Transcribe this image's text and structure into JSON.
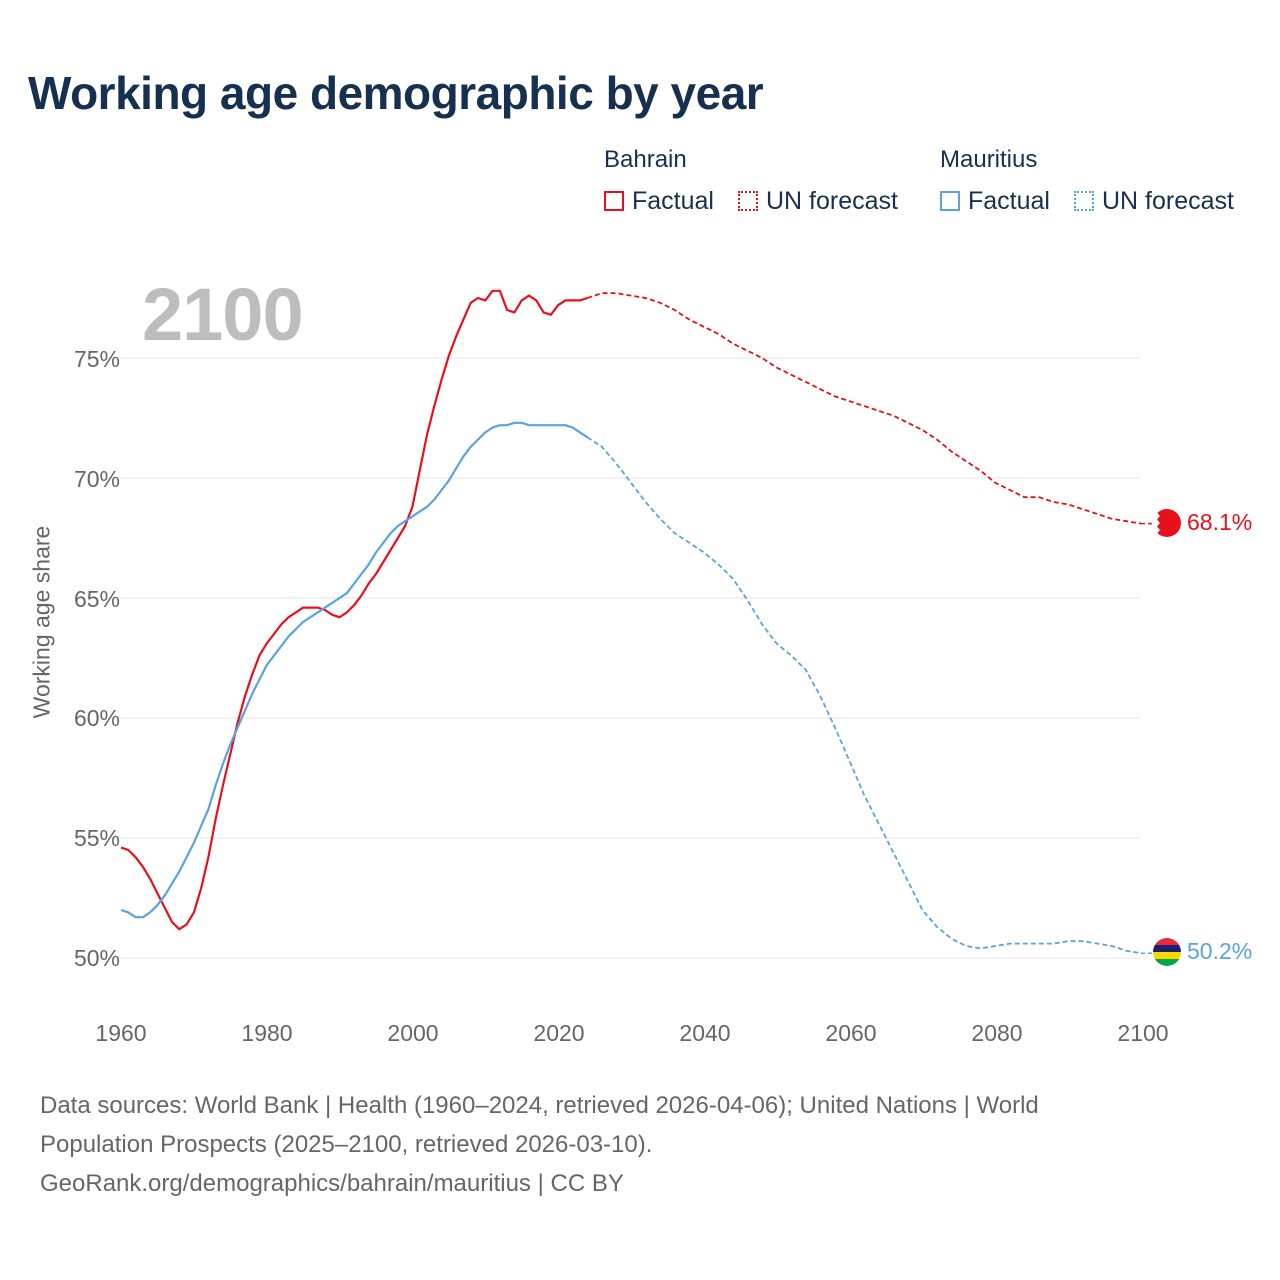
{
  "title": "Working age demographic by year",
  "year_overlay": "2100",
  "legend": {
    "groups": [
      {
        "country": "Bahrain",
        "color": "#e8101a",
        "factual_label": "Factual",
        "forecast_label": "UN forecast"
      },
      {
        "country": "Mauritius",
        "color": "#5aa2e0",
        "factual_label": "Factual",
        "forecast_label": "UN forecast"
      }
    ]
  },
  "footer": {
    "line1": "Data sources: World Bank | Health (1960–2024, retrieved 2026-04-06); United Nations | World",
    "line2": "Population Prospects (2025–2100, retrieved 2026-03-10).",
    "line3": "GeoRank.org/demographics/bahrain/mauritius | CC BY"
  },
  "chart_data": {
    "type": "line",
    "title": "Working age demographic by year",
    "xlabel": "",
    "ylabel": "Working age share",
    "xlim": [
      1960,
      2100
    ],
    "ylim": [
      50,
      77.5
    ],
    "x_ticks": [
      "1960",
      "1980",
      "2000",
      "2020",
      "2040",
      "2060",
      "2080",
      "2100"
    ],
    "y_ticks": [
      "50%",
      "55%",
      "60%",
      "65%",
      "70%",
      "75%"
    ],
    "grid": true,
    "factual_end_year": 2024,
    "series": [
      {
        "name": "Bahrain",
        "color": "#e8101a",
        "end_label": "68.1%",
        "points": [
          [
            1960,
            54.6
          ],
          [
            1961,
            54.5
          ],
          [
            1962,
            54.2
          ],
          [
            1963,
            53.8
          ],
          [
            1964,
            53.3
          ],
          [
            1965,
            52.7
          ],
          [
            1966,
            52.1
          ],
          [
            1967,
            51.5
          ],
          [
            1968,
            51.2
          ],
          [
            1969,
            51.4
          ],
          [
            1970,
            51.9
          ],
          [
            1971,
            52.9
          ],
          [
            1972,
            54.2
          ],
          [
            1973,
            55.8
          ],
          [
            1974,
            57.2
          ],
          [
            1975,
            58.5
          ],
          [
            1976,
            59.8
          ],
          [
            1977,
            60.9
          ],
          [
            1978,
            61.8
          ],
          [
            1979,
            62.6
          ],
          [
            1980,
            63.1
          ],
          [
            1981,
            63.5
          ],
          [
            1982,
            63.9
          ],
          [
            1983,
            64.2
          ],
          [
            1984,
            64.4
          ],
          [
            1985,
            64.6
          ],
          [
            1986,
            64.6
          ],
          [
            1987,
            64.6
          ],
          [
            1988,
            64.5
          ],
          [
            1989,
            64.3
          ],
          [
            1990,
            64.2
          ],
          [
            1991,
            64.4
          ],
          [
            1992,
            64.7
          ],
          [
            1993,
            65.1
          ],
          [
            1994,
            65.6
          ],
          [
            1995,
            66.0
          ],
          [
            1996,
            66.5
          ],
          [
            1997,
            67.0
          ],
          [
            1998,
            67.5
          ],
          [
            1999,
            68.0
          ],
          [
            2000,
            68.8
          ],
          [
            2001,
            70.3
          ],
          [
            2002,
            71.8
          ],
          [
            2003,
            73.0
          ],
          [
            2004,
            74.1
          ],
          [
            2005,
            75.1
          ],
          [
            2006,
            75.9
          ],
          [
            2007,
            76.6
          ],
          [
            2008,
            77.3
          ],
          [
            2009,
            77.5
          ],
          [
            2010,
            77.4
          ],
          [
            2011,
            77.8
          ],
          [
            2012,
            77.8
          ],
          [
            2013,
            77.0
          ],
          [
            2014,
            76.9
          ],
          [
            2015,
            77.4
          ],
          [
            2016,
            77.6
          ],
          [
            2017,
            77.4
          ],
          [
            2018,
            76.9
          ],
          [
            2019,
            76.8
          ],
          [
            2020,
            77.2
          ],
          [
            2021,
            77.4
          ],
          [
            2022,
            77.4
          ],
          [
            2023,
            77.4
          ],
          [
            2024,
            77.5
          ],
          [
            2026,
            77.7
          ],
          [
            2028,
            77.7
          ],
          [
            2030,
            77.6
          ],
          [
            2032,
            77.5
          ],
          [
            2034,
            77.3
          ],
          [
            2036,
            77.0
          ],
          [
            2038,
            76.6
          ],
          [
            2040,
            76.3
          ],
          [
            2042,
            76.0
          ],
          [
            2044,
            75.6
          ],
          [
            2046,
            75.3
          ],
          [
            2048,
            75.0
          ],
          [
            2050,
            74.6
          ],
          [
            2052,
            74.3
          ],
          [
            2054,
            74.0
          ],
          [
            2056,
            73.7
          ],
          [
            2058,
            73.4
          ],
          [
            2060,
            73.2
          ],
          [
            2062,
            73.0
          ],
          [
            2064,
            72.8
          ],
          [
            2066,
            72.6
          ],
          [
            2068,
            72.3
          ],
          [
            2070,
            72.0
          ],
          [
            2072,
            71.6
          ],
          [
            2074,
            71.1
          ],
          [
            2076,
            70.7
          ],
          [
            2078,
            70.3
          ],
          [
            2080,
            69.8
          ],
          [
            2082,
            69.5
          ],
          [
            2084,
            69.2
          ],
          [
            2086,
            69.2
          ],
          [
            2088,
            69.0
          ],
          [
            2090,
            68.9
          ],
          [
            2092,
            68.7
          ],
          [
            2094,
            68.5
          ],
          [
            2096,
            68.3
          ],
          [
            2098,
            68.2
          ],
          [
            2100,
            68.1
          ]
        ]
      },
      {
        "name": "Mauritius",
        "color": "#5aa2e0",
        "end_label": "50.2%",
        "points": [
          [
            1960,
            52.0
          ],
          [
            1961,
            51.9
          ],
          [
            1962,
            51.7
          ],
          [
            1963,
            51.7
          ],
          [
            1964,
            51.9
          ],
          [
            1965,
            52.2
          ],
          [
            1966,
            52.6
          ],
          [
            1967,
            53.1
          ],
          [
            1968,
            53.6
          ],
          [
            1969,
            54.2
          ],
          [
            1970,
            54.8
          ],
          [
            1971,
            55.5
          ],
          [
            1972,
            56.2
          ],
          [
            1973,
            57.2
          ],
          [
            1974,
            58.1
          ],
          [
            1975,
            58.9
          ],
          [
            1976,
            59.6
          ],
          [
            1977,
            60.3
          ],
          [
            1978,
            61.0
          ],
          [
            1979,
            61.6
          ],
          [
            1980,
            62.2
          ],
          [
            1981,
            62.6
          ],
          [
            1982,
            63.0
          ],
          [
            1983,
            63.4
          ],
          [
            1984,
            63.7
          ],
          [
            1985,
            64.0
          ],
          [
            1986,
            64.2
          ],
          [
            1987,
            64.4
          ],
          [
            1988,
            64.6
          ],
          [
            1989,
            64.8
          ],
          [
            1990,
            65.0
          ],
          [
            1991,
            65.2
          ],
          [
            1992,
            65.6
          ],
          [
            1993,
            66.0
          ],
          [
            1994,
            66.4
          ],
          [
            1995,
            66.9
          ],
          [
            1996,
            67.3
          ],
          [
            1997,
            67.7
          ],
          [
            1998,
            68.0
          ],
          [
            1999,
            68.2
          ],
          [
            2000,
            68.4
          ],
          [
            2001,
            68.6
          ],
          [
            2002,
            68.8
          ],
          [
            2003,
            69.1
          ],
          [
            2004,
            69.5
          ],
          [
            2005,
            69.9
          ],
          [
            2006,
            70.4
          ],
          [
            2007,
            70.9
          ],
          [
            2008,
            71.3
          ],
          [
            2009,
            71.6
          ],
          [
            2010,
            71.9
          ],
          [
            2011,
            72.1
          ],
          [
            2012,
            72.2
          ],
          [
            2013,
            72.2
          ],
          [
            2014,
            72.3
          ],
          [
            2015,
            72.3
          ],
          [
            2016,
            72.2
          ],
          [
            2017,
            72.2
          ],
          [
            2018,
            72.2
          ],
          [
            2019,
            72.2
          ],
          [
            2020,
            72.2
          ],
          [
            2021,
            72.2
          ],
          [
            2022,
            72.1
          ],
          [
            2023,
            71.9
          ],
          [
            2024,
            71.7
          ],
          [
            2026,
            71.3
          ],
          [
            2028,
            70.6
          ],
          [
            2030,
            69.8
          ],
          [
            2032,
            69.0
          ],
          [
            2034,
            68.3
          ],
          [
            2036,
            67.7
          ],
          [
            2038,
            67.3
          ],
          [
            2040,
            66.9
          ],
          [
            2042,
            66.4
          ],
          [
            2044,
            65.8
          ],
          [
            2046,
            64.9
          ],
          [
            2048,
            63.9
          ],
          [
            2050,
            63.1
          ],
          [
            2052,
            62.6
          ],
          [
            2054,
            62.0
          ],
          [
            2056,
            60.9
          ],
          [
            2058,
            59.6
          ],
          [
            2060,
            58.2
          ],
          [
            2062,
            56.8
          ],
          [
            2064,
            55.6
          ],
          [
            2066,
            54.4
          ],
          [
            2068,
            53.2
          ],
          [
            2070,
            52.0
          ],
          [
            2072,
            51.3
          ],
          [
            2074,
            50.8
          ],
          [
            2076,
            50.5
          ],
          [
            2078,
            50.4
          ],
          [
            2080,
            50.5
          ],
          [
            2082,
            50.6
          ],
          [
            2084,
            50.6
          ],
          [
            2086,
            50.6
          ],
          [
            2088,
            50.6
          ],
          [
            2090,
            50.7
          ],
          [
            2092,
            50.7
          ],
          [
            2094,
            50.6
          ],
          [
            2096,
            50.5
          ],
          [
            2098,
            50.3
          ],
          [
            2100,
            50.2
          ]
        ]
      }
    ]
  }
}
